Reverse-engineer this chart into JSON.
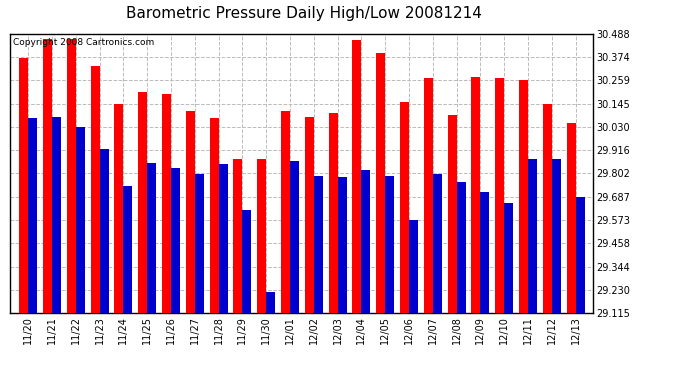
{
  "title": "Barometric Pressure Daily High/Low 20081214",
  "copyright": "Copyright 2008 Cartronics.com",
  "dates": [
    "11/20",
    "11/21",
    "11/22",
    "11/23",
    "11/24",
    "11/25",
    "11/26",
    "11/27",
    "11/28",
    "11/29",
    "11/30",
    "12/01",
    "12/02",
    "12/03",
    "12/04",
    "12/05",
    "12/06",
    "12/07",
    "12/08",
    "12/09",
    "12/10",
    "12/11",
    "12/12",
    "12/13"
  ],
  "highs": [
    30.37,
    30.46,
    30.46,
    30.33,
    30.145,
    30.2,
    30.19,
    30.11,
    30.075,
    29.87,
    29.87,
    30.11,
    30.08,
    30.1,
    30.455,
    30.395,
    30.152,
    30.27,
    30.09,
    30.275,
    30.27,
    30.26,
    30.145,
    30.05
  ],
  "lows": [
    30.075,
    30.078,
    30.03,
    29.92,
    29.74,
    29.855,
    29.83,
    29.8,
    29.85,
    29.62,
    29.22,
    29.865,
    29.79,
    29.785,
    29.82,
    29.79,
    29.575,
    29.8,
    29.76,
    29.71,
    29.655,
    29.87,
    29.87,
    29.685
  ],
  "bar_color_high": "#FF0000",
  "bar_color_low": "#0000CC",
  "background_color": "#FFFFFF",
  "plot_bg_color": "#FFFFFF",
  "grid_color": "#BBBBBB",
  "ylim_min": 29.115,
  "ylim_max": 30.488,
  "yticks": [
    29.115,
    29.23,
    29.344,
    29.458,
    29.573,
    29.687,
    29.802,
    29.916,
    30.03,
    30.145,
    30.259,
    30.374,
    30.488
  ],
  "title_fontsize": 11,
  "tick_fontsize": 7,
  "copyright_fontsize": 6.5,
  "bar_width": 0.38
}
